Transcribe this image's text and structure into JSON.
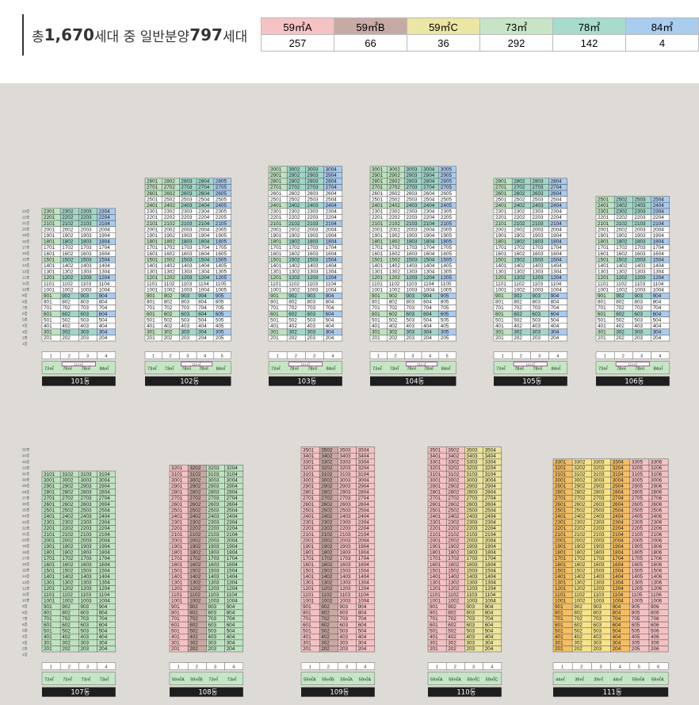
{
  "summary": {
    "prefix": "총 ",
    "total": "1,670",
    "mid": "세대 중 일반분양 ",
    "sale": "797",
    "suffix": "세대"
  },
  "unit_types": [
    {
      "name": "59㎡A",
      "count": "257",
      "color": "#f6c3c5"
    },
    {
      "name": "59㎡B",
      "count": "66",
      "color": "#c8aaa5"
    },
    {
      "name": "59㎡C",
      "count": "36",
      "color": "#ece6a4"
    },
    {
      "name": "73㎡",
      "count": "292",
      "color": "#c7e5c6"
    },
    {
      "name": "78㎡",
      "count": "142",
      "color": "#a6dbcd"
    },
    {
      "name": "84㎡",
      "count": "4",
      "color": "#a9cdef"
    }
  ],
  "colors": {
    "green": "#bfe3c0",
    "teal": "#9fd8ca",
    "blue": "#a8cbf0",
    "pink": "#f5c2c4",
    "rose": "#c9a8a2",
    "yellow": "#ebe49e",
    "orange": "#f5be62",
    "dark": "#1e1e1e",
    "white": "#ffffff"
  },
  "buildings": [
    {
      "name": "101동",
      "lines": 4,
      "floors": 23,
      "lineTypes": [
        "73㎡",
        "78㎡",
        "78㎡",
        "84㎡"
      ],
      "merged": [
        1,
        2
      ],
      "mergedLabel": "111㎡",
      "colored": [
        [
          22,
          0,
          "green"
        ],
        [
          22,
          1,
          "teal"
        ],
        [
          22,
          2,
          "teal"
        ],
        [
          23,
          0,
          "green"
        ],
        [
          23,
          1,
          "teal"
        ],
        [
          23,
          2,
          "teal"
        ]
      ],
      "colGreen": [
        0
      ],
      "colTeal": [
        1,
        2
      ],
      "colBlue": [
        3
      ],
      "top": "2302"
    },
    {
      "name": "102동",
      "lines": 5,
      "floors": 28,
      "lineTypes": [
        "73㎡",
        "73㎡",
        "78㎡",
        "78㎡",
        "84㎡"
      ],
      "merged": [
        2,
        3
      ],
      "mergedLabel": "111㎡",
      "colGreen": [
        0,
        1
      ],
      "colTeal": [
        2,
        3
      ],
      "colBlue": [
        4
      ],
      "top": "2803"
    },
    {
      "name": "103동",
      "lines": 4,
      "floors": 30,
      "lineTypes": [
        "73㎡",
        "78㎡",
        "78㎡",
        "84㎡"
      ],
      "merged": [
        1,
        2
      ],
      "mergedLabel": "111㎡",
      "colGreen": [
        0
      ],
      "colTeal": [
        1,
        2
      ],
      "colBlue": [
        3
      ],
      "top": "3002"
    },
    {
      "name": "104동",
      "lines": 5,
      "floors": 30,
      "lineTypes": [
        "73㎡",
        "73㎡",
        "78㎡",
        "78㎡",
        "84㎡"
      ],
      "merged": [
        2,
        3
      ],
      "mergedLabel": "111㎡",
      "colGreen": [
        0,
        1
      ],
      "colTeal": [
        2,
        3
      ],
      "colBlue": [
        4
      ],
      "top": "3003"
    },
    {
      "name": "105동",
      "lines": 4,
      "floors": 28,
      "lineTypes": [
        "73㎡",
        "78㎡",
        "78㎡",
        "84㎡"
      ],
      "merged": [
        1,
        2
      ],
      "mergedLabel": "111㎡",
      "colGreen": [
        0
      ],
      "colTeal": [
        1,
        2
      ],
      "colBlue": [
        3
      ],
      "top": "2802"
    },
    {
      "name": "106동",
      "lines": 4,
      "floors": 25,
      "lineTypes": [
        "73㎡",
        "78㎡",
        "78㎡",
        "84㎡"
      ],
      "merged": [
        1,
        2
      ],
      "mergedLabel": "111㎡",
      "colGreen": [
        0
      ],
      "colTeal": [
        1,
        2
      ],
      "colBlue": [
        3
      ],
      "top": "2502"
    },
    {
      "name": "107동",
      "lines": 4,
      "floors": 31,
      "lineTypes": [
        "73㎡",
        "73㎡",
        "73㎡",
        "73㎡"
      ],
      "colGreen": [
        0,
        1,
        2,
        3
      ]
    },
    {
      "name": "108동",
      "lines": 4,
      "floors": 32,
      "lineTypes": [
        "59㎡A",
        "59㎡B",
        "73㎡",
        "73㎡"
      ],
      "colPink": [
        0
      ],
      "colRose": [
        1
      ],
      "colGreen": [
        2,
        3
      ]
    },
    {
      "name": "109동",
      "lines": 4,
      "floors": 35,
      "lineTypes": [
        "59㎡A",
        "59㎡B",
        "59㎡A",
        "59㎡A"
      ],
      "colPink": [
        0,
        2,
        3
      ],
      "colRose": [
        1
      ]
    },
    {
      "name": "110동",
      "lines": 4,
      "floors": 35,
      "lineTypes": [
        "59㎡A",
        "59㎡A",
        "59㎡C",
        "59㎡C"
      ],
      "colPink": [
        0,
        1
      ],
      "colYellow": [
        2,
        3
      ]
    },
    {
      "name": "111동",
      "lines": 6,
      "floors": 33,
      "lineTypes": [
        "44㎡",
        "39㎡",
        "39㎡",
        "44㎡",
        "59㎡A",
        "59㎡A"
      ],
      "colOrange": [
        0,
        3
      ],
      "colYellowLight": [
        1,
        2
      ],
      "colPink": [
        4,
        5
      ]
    }
  ]
}
